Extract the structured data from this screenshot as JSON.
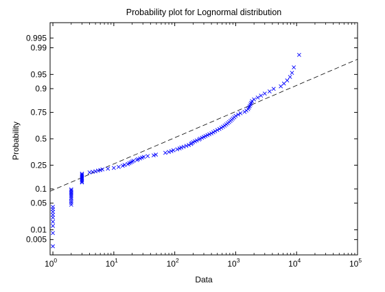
{
  "window": {
    "background": "#ffffff"
  },
  "chart_data": {
    "type": "scatter",
    "title": "Probability plot for Lognormal distribution",
    "xlabel": "Data",
    "ylabel": "Probability",
    "x_scale": "log",
    "y_scale": "normal-probability",
    "xlim": [
      0.9,
      100000
    ],
    "ylim": [
      0.0015,
      0.9985
    ],
    "x_ticks": [
      {
        "value": 1,
        "base": "10",
        "exp": "0"
      },
      {
        "value": 10,
        "base": "10",
        "exp": "1"
      },
      {
        "value": 100,
        "base": "10",
        "exp": "2"
      },
      {
        "value": 1000,
        "base": "10",
        "exp": "3"
      },
      {
        "value": 10000,
        "base": "10",
        "exp": "4"
      },
      {
        "value": 100000,
        "base": "10",
        "exp": "5"
      }
    ],
    "y_ticks": [
      {
        "value": 0.005,
        "label": "0.005"
      },
      {
        "value": 0.01,
        "label": "0.01"
      },
      {
        "value": 0.05,
        "label": "0.05"
      },
      {
        "value": 0.1,
        "label": "0.1"
      },
      {
        "value": 0.25,
        "label": "0.25"
      },
      {
        "value": 0.5,
        "label": "0.5"
      },
      {
        "value": 0.75,
        "label": "0.75"
      },
      {
        "value": 0.9,
        "label": "0.9"
      },
      {
        "value": 0.95,
        "label": "0.95"
      },
      {
        "value": 0.99,
        "label": "0.99"
      },
      {
        "value": 0.995,
        "label": "0.995"
      }
    ],
    "grid": false,
    "marker": "x",
    "marker_color": "#0000ff",
    "fit_line": {
      "style": "dashed",
      "color": "#000000",
      "points": [
        [
          0.9,
          0.09
        ],
        [
          100000,
          0.979
        ]
      ]
    },
    "series": [
      {
        "points": [
          [
            1,
            0.003
          ],
          [
            1,
            0.008
          ],
          [
            1,
            0.013
          ],
          [
            1,
            0.017
          ],
          [
            1,
            0.022
          ],
          [
            1,
            0.026
          ],
          [
            1,
            0.031
          ],
          [
            1,
            0.036
          ],
          [
            1,
            0.041
          ],
          [
            2,
            0.046
          ],
          [
            2,
            0.051
          ],
          [
            2,
            0.056
          ],
          [
            2,
            0.062
          ],
          [
            2,
            0.067
          ],
          [
            2,
            0.072
          ],
          [
            2,
            0.077
          ],
          [
            2,
            0.082
          ],
          [
            2,
            0.087
          ],
          [
            2,
            0.093
          ],
          [
            2,
            0.098
          ],
          [
            3,
            0.132
          ],
          [
            3,
            0.138
          ],
          [
            3,
            0.145
          ],
          [
            3,
            0.152
          ],
          [
            3,
            0.158
          ],
          [
            3,
            0.165
          ],
          [
            3,
            0.172
          ],
          [
            3,
            0.179
          ],
          [
            3,
            0.186
          ],
          [
            4,
            0.195
          ],
          [
            4.5,
            0.199
          ],
          [
            5,
            0.203
          ],
          [
            5.5,
            0.208
          ],
          [
            6,
            0.212
          ],
          [
            6.5,
            0.217
          ],
          [
            8,
            0.222
          ],
          [
            10,
            0.228
          ],
          [
            12,
            0.236
          ],
          [
            14,
            0.245
          ],
          [
            15,
            0.252
          ],
          [
            17,
            0.259
          ],
          [
            18,
            0.266
          ],
          [
            19,
            0.273
          ],
          [
            20,
            0.28
          ],
          [
            21,
            0.287
          ],
          [
            24,
            0.294
          ],
          [
            25,
            0.301
          ],
          [
            27,
            0.308
          ],
          [
            29,
            0.315
          ],
          [
            31,
            0.322
          ],
          [
            36,
            0.329
          ],
          [
            45,
            0.336
          ],
          [
            49,
            0.343
          ],
          [
            70,
            0.36
          ],
          [
            80,
            0.368
          ],
          [
            88,
            0.376
          ],
          [
            95,
            0.385
          ],
          [
            110,
            0.394
          ],
          [
            120,
            0.403
          ],
          [
            128,
            0.411
          ],
          [
            140,
            0.419
          ],
          [
            155,
            0.428
          ],
          [
            170,
            0.437
          ],
          [
            185,
            0.447
          ],
          [
            190,
            0.456
          ],
          [
            200,
            0.465
          ],
          [
            215,
            0.474
          ],
          [
            230,
            0.483
          ],
          [
            250,
            0.492
          ],
          [
            260,
            0.501
          ],
          [
            280,
            0.51
          ],
          [
            300,
            0.519
          ],
          [
            320,
            0.528
          ],
          [
            345,
            0.537
          ],
          [
            370,
            0.546
          ],
          [
            400,
            0.555
          ],
          [
            430,
            0.566
          ],
          [
            460,
            0.577
          ],
          [
            500,
            0.588
          ],
          [
            540,
            0.599
          ],
          [
            580,
            0.61
          ],
          [
            620,
            0.621
          ],
          [
            660,
            0.632
          ],
          [
            700,
            0.643
          ],
          [
            740,
            0.654
          ],
          [
            780,
            0.665
          ],
          [
            820,
            0.676
          ],
          [
            860,
            0.687
          ],
          [
            900,
            0.698
          ],
          [
            950,
            0.709
          ],
          [
            1000,
            0.721
          ],
          [
            1100,
            0.732
          ],
          [
            1200,
            0.743
          ],
          [
            1400,
            0.754
          ],
          [
            1500,
            0.765
          ],
          [
            1600,
            0.776
          ],
          [
            1650,
            0.787
          ],
          [
            1700,
            0.798
          ],
          [
            1750,
            0.81
          ],
          [
            1800,
            0.821
          ],
          [
            1850,
            0.832
          ],
          [
            2000,
            0.843
          ],
          [
            2300,
            0.854
          ],
          [
            2600,
            0.865
          ],
          [
            3000,
            0.876
          ],
          [
            3600,
            0.887
          ],
          [
            4200,
            0.899
          ],
          [
            5500,
            0.91
          ],
          [
            6200,
            0.921
          ],
          [
            7000,
            0.932
          ],
          [
            7800,
            0.943
          ],
          [
            8400,
            0.954
          ],
          [
            9000,
            0.966
          ],
          [
            11000,
            0.984
          ]
        ]
      }
    ]
  }
}
